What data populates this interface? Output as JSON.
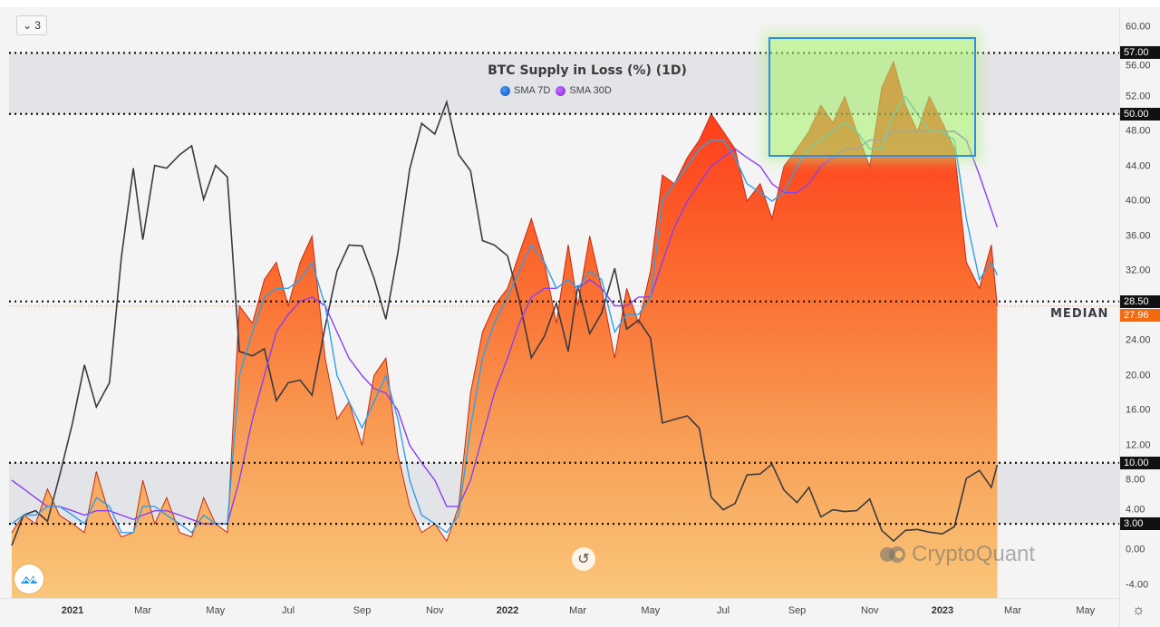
{
  "toolbar": {
    "collapse_count": "3"
  },
  "title": "BTC Supply in Loss (%) (1D)",
  "legend": [
    {
      "label": "SMA 7D",
      "color": "#1e6fe0"
    },
    {
      "label": "SMA 30D",
      "color": "#a040f0"
    }
  ],
  "median_label": "MEDIAN",
  "watermark": "CryptoQuant",
  "colors": {
    "loss_line": "#c62a10",
    "sma7": "#2fa0ea",
    "sma30": "#8a3ff0",
    "btc": "#3b3b3f",
    "current": "#f26a10",
    "highlight_border": "#2d8cf0"
  },
  "chart_data": {
    "type": "area",
    "title": "BTC Supply in Loss (%) (1D)",
    "xlabel": "",
    "ylabel": "",
    "ylim": [
      -4.2,
      62.8
    ],
    "y_ticks": [
      "60.00",
      "56.00",
      "52.00",
      "48.00",
      "44.00",
      "40.00",
      "36.00",
      "32.00",
      "24.00",
      "20.00",
      "16.00",
      "12.00",
      "8.00",
      "4.00",
      "0.00",
      "-4.00"
    ],
    "x_ticks": [
      {
        "date": "2021-01-01",
        "label": "2021",
        "year": true
      },
      {
        "date": "2021-03-01",
        "label": "Mar"
      },
      {
        "date": "2021-05-01",
        "label": "May"
      },
      {
        "date": "2021-07-01",
        "label": "Jul"
      },
      {
        "date": "2021-09-01",
        "label": "Sep"
      },
      {
        "date": "2021-11-01",
        "label": "Nov"
      },
      {
        "date": "2022-01-01",
        "label": "2022",
        "year": true
      },
      {
        "date": "2022-03-01",
        "label": "Mar"
      },
      {
        "date": "2022-05-01",
        "label": "May"
      },
      {
        "date": "2022-07-01",
        "label": "Jul"
      },
      {
        "date": "2022-09-01",
        "label": "Sep"
      },
      {
        "date": "2022-11-01",
        "label": "Nov"
      },
      {
        "date": "2023-01-01",
        "label": "2023",
        "year": true
      },
      {
        "date": "2023-03-01",
        "label": "Mar"
      },
      {
        "date": "2023-05-01",
        "label": "May"
      }
    ],
    "levels": [
      {
        "value": 57,
        "label": "57.00"
      },
      {
        "value": 50,
        "label": "50.00"
      },
      {
        "value": 28.5,
        "label": "28.50"
      },
      {
        "value": 10,
        "label": "10.00"
      },
      {
        "value": 3,
        "label": "3.00"
      }
    ],
    "bands": [
      [
        50,
        57
      ],
      [
        3,
        10
      ]
    ],
    "current_value": {
      "value": 27.96,
      "label": "27.96"
    },
    "dates": [
      "2020-11-11",
      "2020-11-21",
      "2020-12-01",
      "2020-12-11",
      "2020-12-21",
      "2021-01-01",
      "2021-01-11",
      "2021-01-21",
      "2021-02-01",
      "2021-02-11",
      "2021-02-21",
      "2021-03-01",
      "2021-03-11",
      "2021-03-21",
      "2021-04-01",
      "2021-04-11",
      "2021-04-21",
      "2021-05-01",
      "2021-05-11",
      "2021-05-21",
      "2021-06-01",
      "2021-06-11",
      "2021-06-21",
      "2021-07-01",
      "2021-07-11",
      "2021-07-21",
      "2021-08-01",
      "2021-08-11",
      "2021-08-21",
      "2021-09-01",
      "2021-09-11",
      "2021-09-21",
      "2021-10-01",
      "2021-10-11",
      "2021-10-21",
      "2021-11-01",
      "2021-11-11",
      "2021-11-21",
      "2021-12-01",
      "2021-12-11",
      "2021-12-21",
      "2022-01-01",
      "2022-01-11",
      "2022-01-21",
      "2022-02-01",
      "2022-02-11",
      "2022-02-21",
      "2022-03-01",
      "2022-03-11",
      "2022-03-21",
      "2022-04-01",
      "2022-04-11",
      "2022-04-21",
      "2022-05-01",
      "2022-05-11",
      "2022-05-21",
      "2022-06-01",
      "2022-06-11",
      "2022-06-21",
      "2022-07-01",
      "2022-07-11",
      "2022-07-21",
      "2022-08-01",
      "2022-08-11",
      "2022-08-21",
      "2022-09-01",
      "2022-09-11",
      "2022-09-21",
      "2022-10-01",
      "2022-10-11",
      "2022-10-21",
      "2022-11-01",
      "2022-11-11",
      "2022-11-21",
      "2022-12-01",
      "2022-12-11",
      "2022-12-21",
      "2023-01-01",
      "2023-01-11",
      "2023-01-21",
      "2023-02-01",
      "2023-02-11",
      "2023-02-16"
    ],
    "series": [
      {
        "name": "BTC Supply in Loss (%)",
        "values": [
          2,
          4,
          3,
          7,
          4,
          3,
          2,
          9,
          4,
          1.5,
          2,
          8,
          3,
          6,
          2,
          1.5,
          6,
          3,
          2,
          28,
          26,
          31,
          33,
          28,
          33,
          36,
          22,
          15,
          17,
          12,
          20,
          22,
          11,
          5,
          2,
          3,
          1,
          5,
          18,
          25,
          28,
          30,
          34,
          38,
          33,
          26,
          35,
          28,
          36,
          30,
          22,
          30,
          26,
          32,
          43,
          42,
          45,
          47,
          50,
          48,
          46,
          40,
          42,
          38,
          44,
          46,
          48,
          51,
          49,
          52,
          48,
          44,
          53,
          56,
          51,
          48,
          52,
          49,
          46,
          33,
          30,
          35,
          27.96
        ]
      },
      {
        "name": "SMA 7D",
        "values": [
          3,
          4,
          4,
          5,
          5,
          4,
          3,
          6,
          5,
          2,
          2,
          5,
          5,
          4,
          3,
          2,
          4,
          3,
          3,
          20,
          25,
          29,
          30,
          30,
          31,
          33,
          28,
          20,
          17,
          14,
          17,
          20,
          15,
          8,
          4,
          3,
          2,
          4,
          14,
          22,
          26,
          29,
          32,
          35,
          33,
          30,
          31,
          30,
          32,
          31,
          25,
          27,
          27,
          29,
          40,
          42,
          44,
          46,
          47,
          47,
          45,
          42,
          41,
          40,
          41,
          44,
          46,
          47,
          48,
          49,
          48,
          46,
          46,
          50,
          52,
          50,
          48,
          48,
          47,
          38,
          31,
          33,
          31.5
        ]
      },
      {
        "name": "SMA 30D",
        "values": [
          8,
          7,
          6,
          5,
          5,
          4.5,
          4,
          4.5,
          4.5,
          4,
          3.5,
          4,
          4.5,
          4.5,
          4,
          3.5,
          3,
          3,
          3,
          8,
          15,
          20,
          25,
          27,
          28.5,
          29,
          28,
          25,
          22,
          20,
          18.5,
          18,
          16,
          12,
          10,
          8,
          5,
          5,
          8,
          13,
          18,
          22,
          26,
          29,
          30,
          30,
          31,
          30,
          31,
          30,
          28,
          28,
          29,
          29,
          33,
          37,
          40,
          42,
          44,
          45,
          46,
          45,
          44,
          42,
          41,
          41,
          42,
          44,
          45,
          46,
          46,
          47,
          47,
          48,
          48,
          48,
          48,
          48,
          48,
          47,
          43,
          39,
          37
        ]
      },
      {
        "name": "BTC Price (USD k)",
        "axis": "hidden",
        "range": [
          10.85,
          74.07
        ],
        "values": [
          15.3,
          18.7,
          19.2,
          18.0,
          23.0,
          29.0,
          35.5,
          30.8,
          33.5,
          47.5,
          57.5,
          49.5,
          57.8,
          57.5,
          59.0,
          60.0,
          54.0,
          57.8,
          56.5,
          37.0,
          36.5,
          37.3,
          31.5,
          33.5,
          33.8,
          32.1,
          39.8,
          46.0,
          48.9,
          48.8,
          45.2,
          40.6,
          48.0,
          57.4,
          62.5,
          61.3,
          64.9,
          59.0,
          57.2,
          49.4,
          48.9,
          47.7,
          42.7,
          36.3,
          38.7,
          42.4,
          37.0,
          44.4,
          39.0,
          41.3,
          46.3,
          39.5,
          40.5,
          38.5,
          29.0,
          29.4,
          29.8,
          28.4,
          20.7,
          19.3,
          20.0,
          23.2,
          23.3,
          24.4,
          21.5,
          20.1,
          21.8,
          18.5,
          19.3,
          19.1,
          19.2,
          20.5,
          17.0,
          15.8,
          17.0,
          17.1,
          16.8,
          16.6,
          17.4,
          22.8,
          23.7,
          21.8,
          24.3
        ]
      }
    ]
  }
}
